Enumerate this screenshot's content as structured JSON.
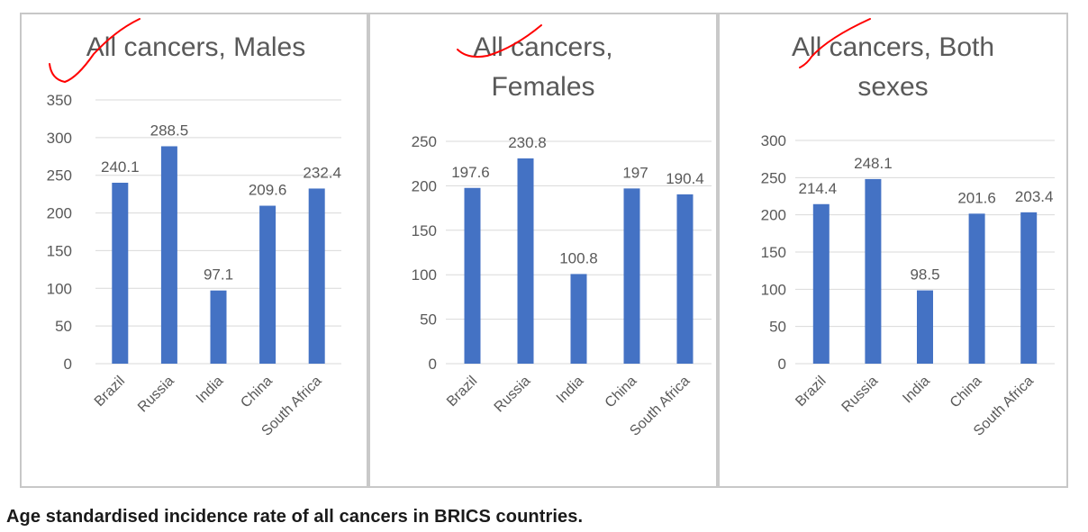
{
  "caption": "Age standardised incidence rate of all cancers in BRICS countries.",
  "colors": {
    "bar": "#4472c4",
    "gridline": "#d9d9d9",
    "text": "#595959",
    "title": "#595959",
    "checkmark": "#ff0000"
  },
  "chart_data": [
    {
      "type": "bar",
      "title_lines": [
        "All cancers, Males"
      ],
      "categories": [
        "Brazil",
        "Russia",
        "India",
        "China",
        "South Africa"
      ],
      "values": [
        240.1,
        288.5,
        97.1,
        209.6,
        232.4
      ],
      "data_labels": [
        "240.1",
        "288.5",
        "97.1",
        "209.6",
        "232.4"
      ],
      "ylim": [
        0,
        350
      ],
      "yticks": [
        "0",
        "50",
        "100",
        "150",
        "200",
        "250",
        "300",
        "350"
      ],
      "grid": true,
      "legend": "none"
    },
    {
      "type": "bar",
      "title_lines": [
        "All cancers,",
        "Females"
      ],
      "categories": [
        "Brazil",
        "Russia",
        "India",
        "China",
        "South Africa"
      ],
      "values": [
        197.6,
        230.8,
        100.8,
        197,
        190.4
      ],
      "data_labels": [
        "197.6",
        "230.8",
        "100.8",
        "197",
        "190.4"
      ],
      "ylim": [
        0,
        250
      ],
      "yticks": [
        "0",
        "50",
        "100",
        "150",
        "200",
        "250"
      ],
      "grid": true,
      "legend": "none"
    },
    {
      "type": "bar",
      "title_lines": [
        "All cancers, Both",
        "sexes"
      ],
      "categories": [
        "Brazil",
        "Russia",
        "India",
        "China",
        "South Africa"
      ],
      "values": [
        214.4,
        248.1,
        98.5,
        201.6,
        203.4
      ],
      "data_labels": [
        "214.4",
        "248.1",
        "98.5",
        "201.6",
        "203.4"
      ],
      "ylim": [
        0,
        300
      ],
      "yticks": [
        "0",
        "50",
        "100",
        "150",
        "200",
        "250",
        "300"
      ],
      "grid": true,
      "legend": "none"
    }
  ]
}
